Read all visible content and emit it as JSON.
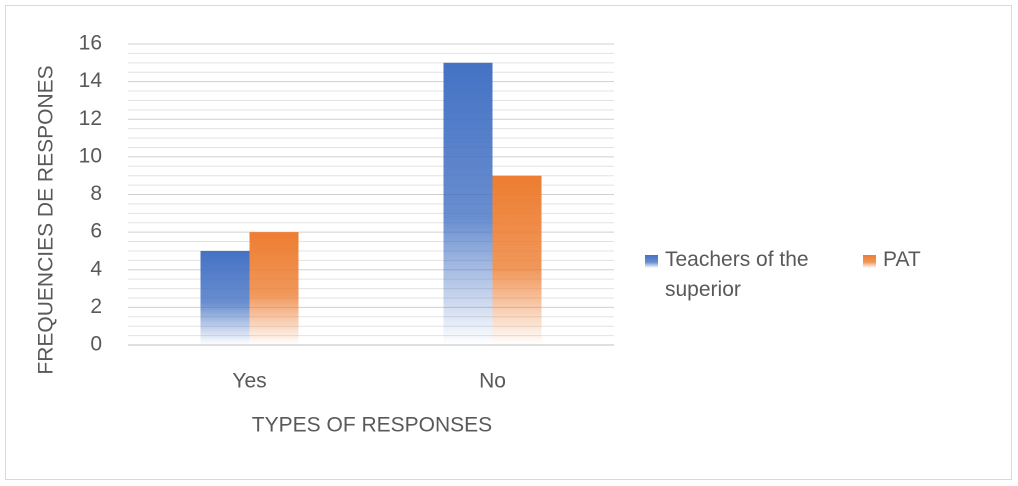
{
  "chart_data": {
    "type": "bar",
    "x_label": "TYPES OF RESPONSES",
    "y_label": "FREQUENCIES DE RESPONES",
    "categories": [
      "Yes",
      "No"
    ],
    "series": [
      {
        "name": "Teachers of the superior",
        "color": "#4472c4",
        "values": [
          5,
          15
        ]
      },
      {
        "name": "PAT",
        "color": "#ed7d31",
        "values": [
          6,
          9
        ]
      }
    ],
    "ylim": [
      0,
      16
    ],
    "yticks": [
      0,
      2,
      4,
      6,
      8,
      10,
      12,
      14,
      16
    ],
    "grid": true,
    "legend": "right"
  }
}
